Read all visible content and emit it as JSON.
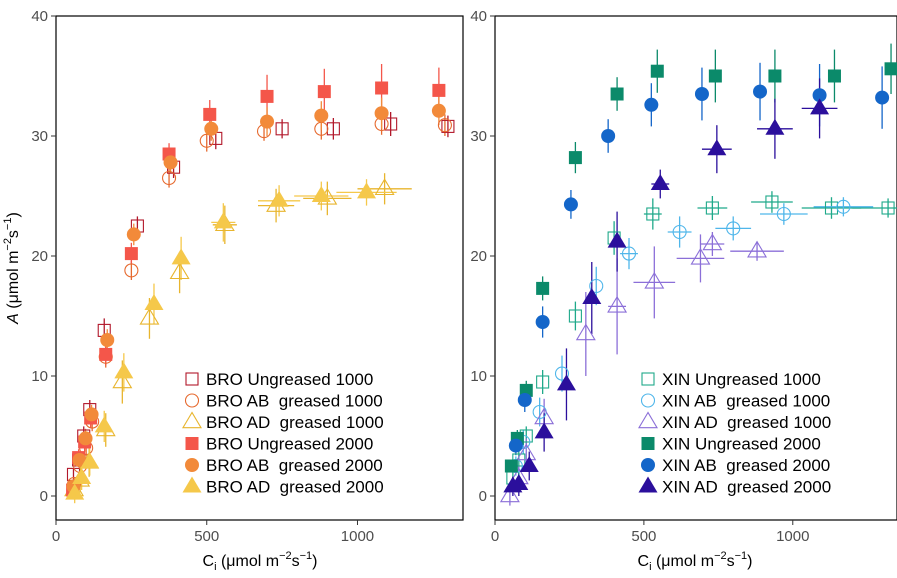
{
  "chart_data": [
    {
      "type": "scatter",
      "panel": "left",
      "xlabel_parts": [
        "C",
        "i",
        " (μmol m",
        "−2",
        "s",
        "−1",
        ")"
      ],
      "ylabel_parts": [
        "A",
        " (μmol m",
        "−2",
        "s",
        "−1",
        ")"
      ],
      "xlim": [
        0,
        1350
      ],
      "ylim": [
        -2,
        40
      ],
      "xticks": [
        0,
        500,
        1000
      ],
      "yticks": [
        0,
        10,
        20,
        30,
        40
      ],
      "grid": false,
      "legend_position": "bottom-right",
      "series": [
        {
          "name": "BRO Ungreased 1000",
          "color": "#b2182b",
          "marker": "square-open",
          "x": [
            58,
            75,
            92,
            112,
            160,
            270,
            390,
            530,
            750,
            920,
            1110,
            1300
          ],
          "y": [
            1.8,
            3.0,
            5.0,
            7.2,
            13.8,
            22.5,
            27.4,
            29.8,
            30.6,
            30.6,
            31.0,
            30.8
          ],
          "yerr": [
            0.5,
            0.6,
            0.8,
            0.8,
            1.0,
            0.8,
            0.9,
            0.9,
            0.8,
            0.9,
            1.0,
            0.9
          ]
        },
        {
          "name": "BRO AB  greased 1000",
          "color": "#e6692e",
          "marker": "circle-open",
          "x": [
            60,
            80,
            100,
            120,
            165,
            250,
            375,
            500,
            690,
            880,
            1080,
            1290
          ],
          "y": [
            1.0,
            2.5,
            4.0,
            6.2,
            11.6,
            18.8,
            26.5,
            29.6,
            30.4,
            30.6,
            31.0,
            30.9
          ],
          "yerr": [
            0.5,
            0.6,
            0.7,
            0.8,
            0.9,
            0.8,
            0.8,
            0.9,
            0.8,
            0.9,
            0.9,
            0.9
          ]
        },
        {
          "name": "BRO AD  greased 1000",
          "color": "#e8b52e",
          "marker": "triangle-open",
          "x": [
            60,
            80,
            110,
            165,
            220,
            310,
            410,
            560,
            730,
            900,
            1090
          ],
          "y": [
            0.5,
            1.3,
            2.8,
            5.5,
            9.5,
            14.8,
            18.6,
            22.6,
            24.2,
            24.8,
            25.6
          ],
          "yerr": [
            0.8,
            1.0,
            1.2,
            1.4,
            1.8,
            1.7,
            1.7,
            1.6,
            1.4,
            1.4,
            1.3
          ],
          "xerr": [
            0,
            0,
            0,
            0,
            0,
            0,
            0,
            40,
            60,
            80,
            90
          ]
        },
        {
          "name": "BRO Ungreased 2000",
          "color": "#f4564a",
          "marker": "square-filled",
          "x": [
            55,
            75,
            95,
            115,
            165,
            250,
            375,
            510,
            700,
            890,
            1080,
            1270
          ],
          "y": [
            0.5,
            3.2,
            4.5,
            6.5,
            11.8,
            20.2,
            28.5,
            31.8,
            33.3,
            33.7,
            34.0,
            33.8
          ],
          "yerr": [
            0.5,
            0.7,
            0.8,
            0.8,
            0.9,
            0.9,
            0.9,
            1.2,
            1.8,
            1.9,
            2.0,
            1.9
          ]
        },
        {
          "name": "BRO AB  greased 2000",
          "color": "#f28a3a",
          "marker": "circle-filled",
          "x": [
            58,
            78,
            98,
            118,
            170,
            258,
            380,
            515,
            700,
            880,
            1080,
            1270
          ],
          "y": [
            0.8,
            3.0,
            4.8,
            6.8,
            13.0,
            21.8,
            27.8,
            30.6,
            31.2,
            31.7,
            31.9,
            32.1
          ],
          "yerr": [
            0.5,
            0.7,
            0.8,
            0.8,
            0.9,
            0.9,
            0.9,
            1.0,
            1.2,
            1.2,
            1.3,
            1.2
          ]
        },
        {
          "name": "BRO AD  greased 2000",
          "color": "#f5c84a",
          "marker": "triangle-filled",
          "x": [
            62,
            85,
            112,
            160,
            225,
            325,
            415,
            555,
            740,
            880,
            1030
          ],
          "y": [
            0.2,
            1.5,
            2.8,
            5.8,
            10.3,
            16.0,
            19.8,
            22.8,
            24.6,
            25.0,
            25.3
          ],
          "yerr": [
            0.8,
            1.0,
            1.1,
            1.3,
            1.6,
            1.7,
            1.8,
            1.6,
            1.3,
            1.2,
            1.1
          ],
          "xerr": [
            0,
            0,
            0,
            0,
            0,
            0,
            0,
            40,
            70,
            90,
            100
          ]
        }
      ]
    },
    {
      "type": "scatter",
      "panel": "right",
      "xlabel_parts": [
        "C",
        "i",
        " (μmol m",
        "−2",
        "s",
        "−1",
        ")"
      ],
      "xlim": [
        0,
        1350
      ],
      "ylim": [
        -2,
        40
      ],
      "xticks": [
        0,
        500,
        1000
      ],
      "yticks": [
        0,
        10,
        20,
        30,
        40
      ],
      "grid": false,
      "legend_position": "bottom-right",
      "series": [
        {
          "name": "XIN Ungreased 1000",
          "color": "#1fa98a",
          "marker": "square-open",
          "x": [
            60,
            80,
            105,
            160,
            270,
            400,
            530,
            730,
            930,
            1130,
            1320
          ],
          "y": [
            1.5,
            3.0,
            5.0,
            9.5,
            15.0,
            21.5,
            23.5,
            24.0,
            24.5,
            24.0,
            24.0
          ],
          "yerr": [
            0.5,
            0.8,
            0.8,
            1.0,
            1.2,
            1.4,
            1.3,
            1.0,
            0.9,
            0.9,
            0.8
          ],
          "xerr": [
            0,
            0,
            0,
            0,
            0,
            0,
            30,
            50,
            70,
            100,
            120
          ]
        },
        {
          "name": "XIN AB  greased 1000",
          "color": "#4fb6ea",
          "marker": "circle-open",
          "x": [
            70,
            95,
            150,
            225,
            340,
            450,
            620,
            800,
            970,
            1170
          ],
          "y": [
            2.5,
            4.5,
            7.0,
            10.2,
            17.5,
            20.2,
            22.0,
            22.3,
            23.5,
            24.1
          ],
          "yerr": [
            0.8,
            1.0,
            1.2,
            1.5,
            1.6,
            1.3,
            1.3,
            1.0,
            0.9,
            0.8
          ],
          "xerr": [
            0,
            0,
            0,
            0,
            0,
            30,
            40,
            60,
            80,
            100
          ]
        },
        {
          "name": "XIN AD  greased 1000",
          "color": "#8b6fd8",
          "marker": "triangle-open",
          "x": [
            50,
            80,
            105,
            165,
            305,
            410,
            535,
            690,
            730,
            880
          ],
          "y": [
            0.0,
            1.5,
            3.5,
            6.5,
            13.5,
            15.8,
            17.8,
            19.8,
            21.0,
            20.4
          ],
          "yerr": [
            0.8,
            1.0,
            1.3,
            1.6,
            3.5,
            4.0,
            3.0,
            2.0,
            1.0,
            0.8
          ],
          "xerr": [
            0,
            0,
            0,
            0,
            0,
            30,
            70,
            80,
            40,
            90
          ]
        },
        {
          "name": "XIN Ungreased 2000",
          "color": "#0b8a6a",
          "marker": "square-filled",
          "x": [
            55,
            75,
            105,
            160,
            270,
            410,
            545,
            740,
            940,
            1140,
            1330
          ],
          "y": [
            2.5,
            4.8,
            8.8,
            17.3,
            28.2,
            33.5,
            35.4,
            35.0,
            35.0,
            35.0,
            35.6
          ],
          "yerr": [
            0.5,
            0.7,
            0.8,
            1.0,
            1.3,
            1.4,
            1.8,
            2.2,
            2.2,
            2.2,
            2.1
          ]
        },
        {
          "name": "XIN AB  greased 2000",
          "color": "#1466c9",
          "marker": "circle-filled",
          "x": [
            70,
            100,
            160,
            255,
            380,
            525,
            695,
            890,
            1090,
            1300
          ],
          "y": [
            4.2,
            8.0,
            14.5,
            24.3,
            30.0,
            32.6,
            33.5,
            33.7,
            33.4,
            33.2
          ],
          "yerr": [
            0.8,
            1.0,
            1.3,
            1.2,
            1.4,
            1.8,
            2.2,
            2.4,
            2.6,
            2.6
          ]
        },
        {
          "name": "XIN AD  greased 2000",
          "color": "#2b0f9c",
          "marker": "triangle-filled",
          "x": [
            60,
            80,
            115,
            165,
            240,
            325,
            410,
            555,
            745,
            940,
            1090
          ],
          "y": [
            0.8,
            1.0,
            2.5,
            5.3,
            9.3,
            16.5,
            21.2,
            26.0,
            28.9,
            30.6,
            32.3
          ],
          "yerr": [
            0.8,
            1.0,
            1.2,
            1.6,
            3.0,
            3.0,
            2.5,
            1.2,
            2.0,
            2.5,
            2.5
          ],
          "xerr": [
            0,
            0,
            0,
            0,
            0,
            0,
            0,
            30,
            50,
            60,
            60
          ]
        }
      ]
    }
  ]
}
